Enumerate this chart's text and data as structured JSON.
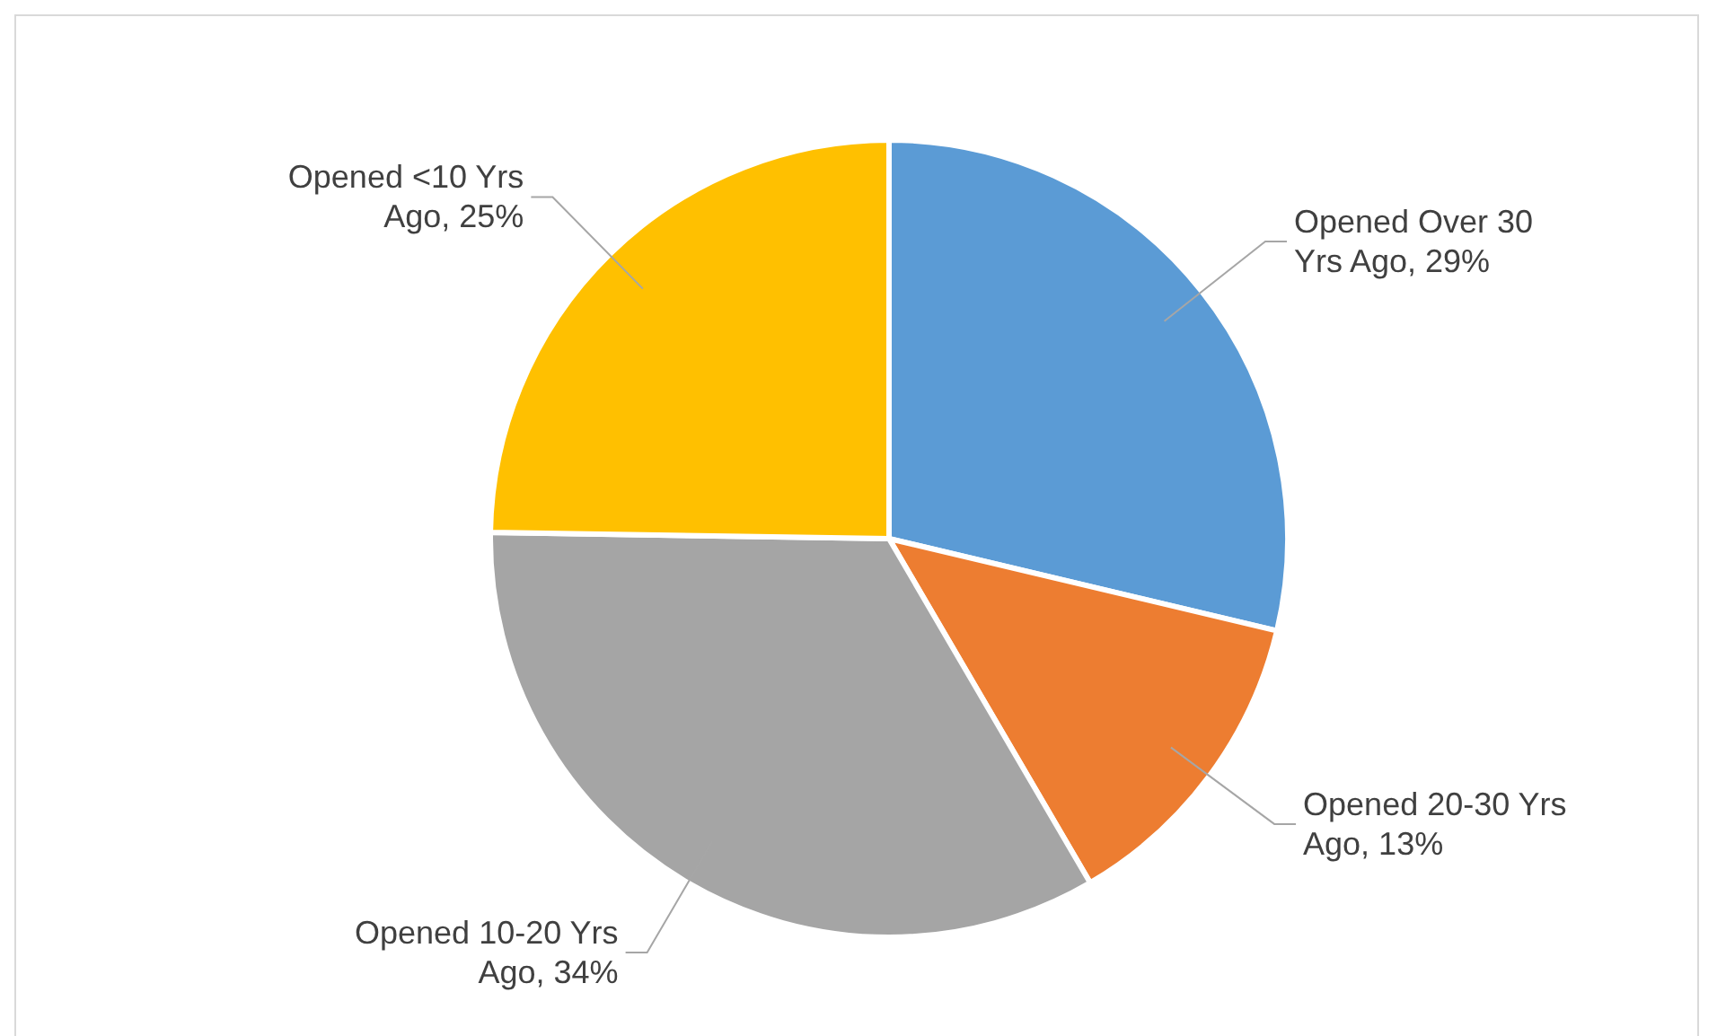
{
  "chart_data": {
    "type": "pie",
    "categories": [
      "Opened Over 30 Yrs Ago",
      "Opened 20-30 Yrs Ago",
      "Opened 10-20 Yrs Ago",
      "Opened <10 Yrs Ago"
    ],
    "values": [
      29,
      13,
      34,
      25
    ],
    "value_labels": [
      "29%",
      "13%",
      "34%",
      "25%"
    ],
    "colors": [
      "#5b9bd5",
      "#ed7d31",
      "#a5a5a5",
      "#ffc000"
    ],
    "legend": false
  }
}
